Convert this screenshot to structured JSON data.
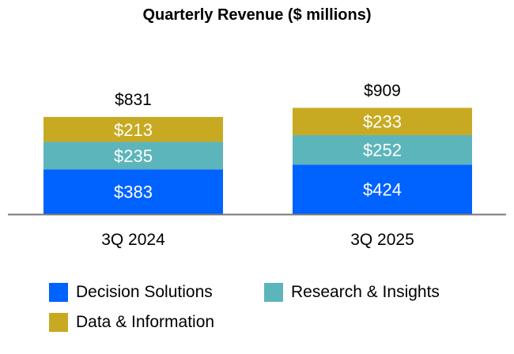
{
  "chart_data": {
    "type": "bar",
    "stacked": true,
    "title": "Quarterly Revenue ($ millions)",
    "categories": [
      "3Q 2024",
      "3Q 2025"
    ],
    "series": [
      {
        "name": "Decision Solutions",
        "values": [
          383,
          424
        ],
        "labels": [
          "$383",
          "$424"
        ],
        "color": "#0062FF"
      },
      {
        "name": "Research & Insights",
        "values": [
          235,
          252
        ],
        "labels": [
          "$235",
          "$252"
        ],
        "color": "#5DB5BC"
      },
      {
        "name": "Data & Information",
        "values": [
          213,
          233
        ],
        "labels": [
          "$213",
          "$233"
        ],
        "color": "#C8AA22"
      }
    ],
    "totals": [
      831,
      909
    ],
    "total_labels": [
      "$831",
      "$909"
    ],
    "ylim": [
      0,
      1000
    ],
    "grid": false,
    "legend_position": "bottom"
  }
}
